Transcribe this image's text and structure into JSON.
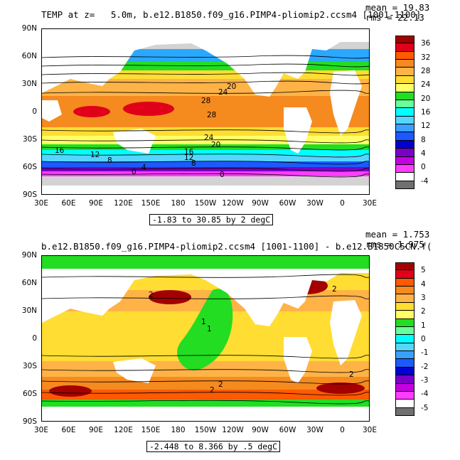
{
  "chart_data": [
    {
      "type": "heatmap",
      "title": "TEMP at z=   5.0m, b.e12.B1850.f09_g16.PIMP4-pliomip2.ccsm4 [1001-1100]",
      "stats": {
        "mean": "mean = 19.83",
        "rms": "rms = 22.13"
      },
      "xticks": [
        "30E",
        "60E",
        "90E",
        "120E",
        "150E",
        "180",
        "150W",
        "120W",
        "90W",
        "60W",
        "30W",
        "0",
        "30E"
      ],
      "yticks": [
        "90N",
        "60N",
        "30N",
        "0",
        "30S",
        "60S",
        "90S"
      ],
      "colorbar": {
        "labels": [
          "36",
          "32",
          "28",
          "24",
          "20",
          "16",
          "12",
          "8",
          "4",
          "0",
          "-4"
        ],
        "colors": [
          "#a40000",
          "#e0001a",
          "#ff5a00",
          "#f58a1f",
          "#ffb347",
          "#ffdd33",
          "#ffff66",
          "#22dd22",
          "#66ff99",
          "#00ffff",
          "#55d6ff",
          "#3aa0ff",
          "#1c5aff",
          "#0000d0",
          "#7a00c8",
          "#c400e0",
          "#ff3cff",
          "#ffffff",
          "#707070"
        ]
      },
      "contour_labels": [
        "20",
        "24",
        "28",
        "28",
        "24",
        "20",
        "16",
        "12",
        "16",
        "12",
        "8",
        "4",
        "0",
        "0",
        "8"
      ],
      "range_text": "-1.83 to 30.85 by 2 degC",
      "value_range": [
        -1.83,
        30.85
      ],
      "contour_interval": 2,
      "units": "degC"
    },
    {
      "type": "heatmap",
      "title": "b.e12.B1850.f09_g16.PIMP4-pliomip2.ccsm4 [1001-1100] - b.e12.B1850C5CN.f(",
      "stats": {
        "mean": "mean = 1.753",
        "rms": "rms = 1.975"
      },
      "xticks": [
        "30E",
        "60E",
        "90E",
        "120E",
        "150E",
        "180",
        "150W",
        "120W",
        "90W",
        "60W",
        "30W",
        "0",
        "30E"
      ],
      "yticks": [
        "90N",
        "60N",
        "30N",
        "0",
        "30S",
        "60S",
        "90S"
      ],
      "colorbar": {
        "labels": [
          "5",
          "4",
          "3",
          "2",
          "1",
          "0",
          "-1",
          "-2",
          "-3",
          "-4",
          "-5"
        ],
        "colors": [
          "#a40000",
          "#e0001a",
          "#ff5a00",
          "#f58a1f",
          "#ffb347",
          "#ffdd33",
          "#ffff66",
          "#22dd22",
          "#66ff99",
          "#00ffff",
          "#55d6ff",
          "#3aa0ff",
          "#1c5aff",
          "#0000d0",
          "#7a00c8",
          "#c400e0",
          "#ff3cff",
          "#ffffff",
          "#707070"
        ]
      },
      "contour_labels": [
        "1",
        "1",
        "2",
        "2",
        "2",
        "2",
        "2"
      ],
      "range_text": "-2.448 to 8.366 by .5 degC",
      "value_range": [
        -2.448,
        8.366
      ],
      "contour_interval": 0.5,
      "units": "degC"
    }
  ]
}
